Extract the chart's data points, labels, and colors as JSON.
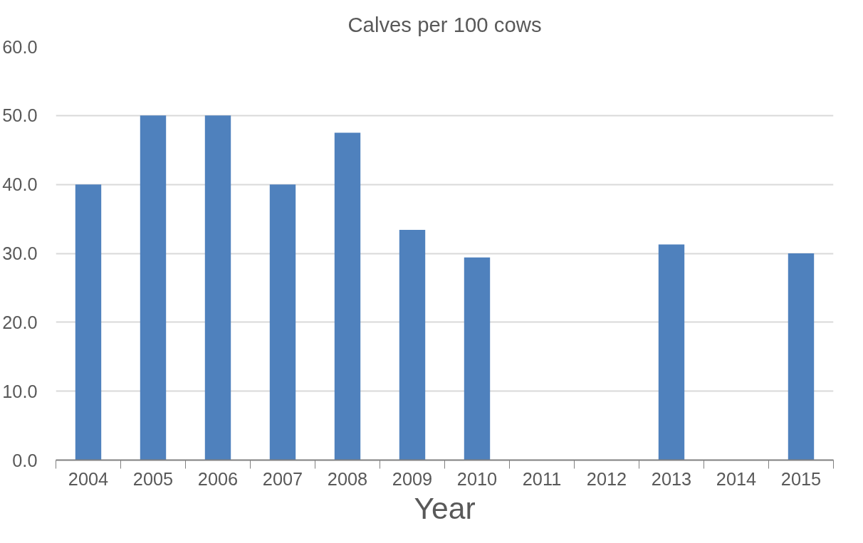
{
  "chart_data": {
    "type": "bar",
    "title": "Calves per 100 cows",
    "xlabel": "Year",
    "categories": [
      "2004",
      "2005",
      "2006",
      "2007",
      "2008",
      "2009",
      "2010",
      "2011",
      "2012",
      "2013",
      "2014",
      "2015"
    ],
    "values": [
      40,
      50,
      50,
      40,
      47.5,
      33.4,
      29.4,
      null,
      null,
      31.3,
      null,
      30.0
    ],
    "color": "#4f81bd",
    "ylim": [
      0,
      60
    ],
    "yticks": [
      {
        "value": 0,
        "label": "0.0"
      },
      {
        "value": 10,
        "label": "10.0"
      },
      {
        "value": 20,
        "label": "20.0"
      },
      {
        "value": 30,
        "label": "30.0"
      },
      {
        "value": 40,
        "label": "40.0"
      },
      {
        "value": 50,
        "label": "50.0"
      },
      {
        "value": 60,
        "label": "60.0"
      }
    ],
    "grid": "y"
  }
}
